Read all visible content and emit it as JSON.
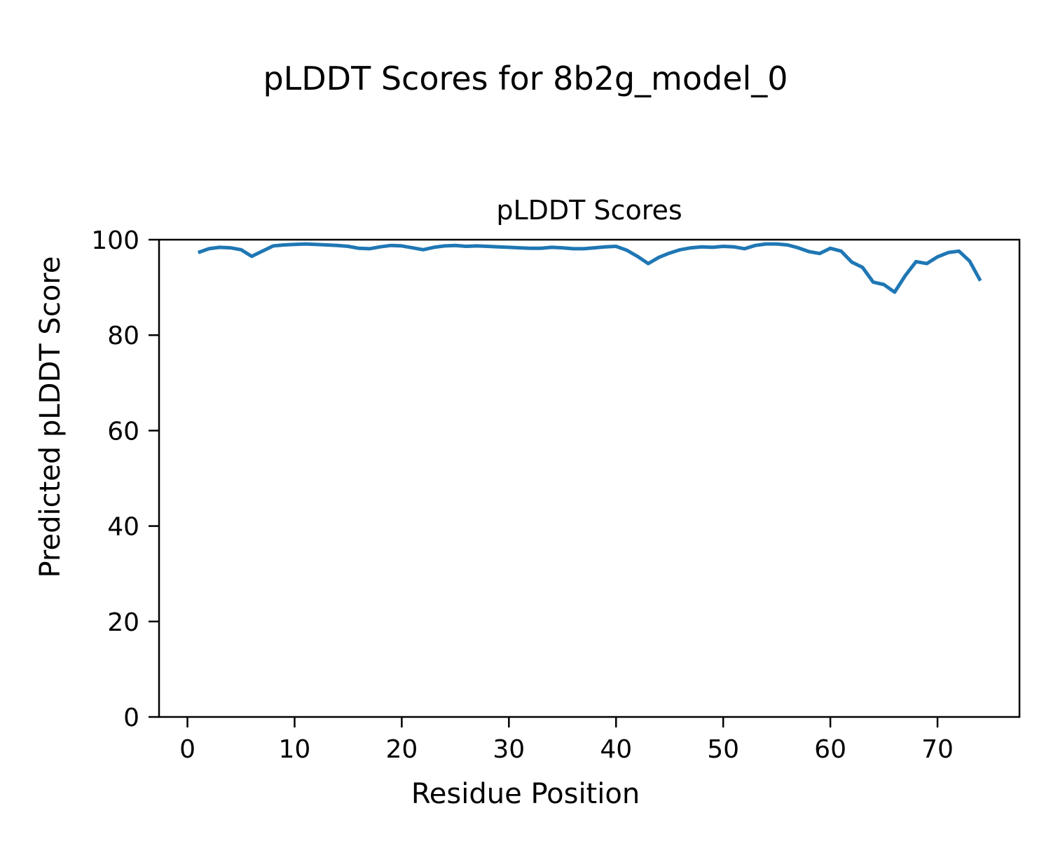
{
  "figure": {
    "suptitle": "pLDDT Scores for 8b2g_model_0"
  },
  "chart_data": {
    "type": "line",
    "title": "pLDDT Scores",
    "xlabel": "Residue Position",
    "ylabel": "Predicted pLDDT Score",
    "legend": null,
    "grid": false,
    "line_color": "#1f77b4",
    "line_width": 5,
    "xlim": [
      -2.65,
      77.65
    ],
    "ylim": [
      0,
      100
    ],
    "x_ticks": [
      0,
      10,
      20,
      30,
      40,
      50,
      60,
      70
    ],
    "y_ticks": [
      0,
      20,
      40,
      60,
      80,
      100
    ],
    "x": [
      1,
      2,
      3,
      4,
      5,
      6,
      7,
      8,
      9,
      10,
      11,
      12,
      13,
      14,
      15,
      16,
      17,
      18,
      19,
      20,
      21,
      22,
      23,
      24,
      25,
      26,
      27,
      28,
      29,
      30,
      31,
      32,
      33,
      34,
      35,
      36,
      37,
      38,
      39,
      40,
      41,
      42,
      43,
      44,
      45,
      46,
      47,
      48,
      49,
      50,
      51,
      52,
      53,
      54,
      55,
      56,
      57,
      58,
      59,
      60,
      61,
      62,
      63,
      64,
      65,
      66,
      67,
      68,
      69,
      70,
      71,
      72,
      73,
      74
    ],
    "y": [
      97.3,
      98.1,
      98.4,
      98.3,
      97.9,
      96.5,
      97.6,
      98.7,
      98.9,
      99.0,
      99.1,
      99.0,
      98.9,
      98.8,
      98.6,
      98.2,
      98.1,
      98.5,
      98.8,
      98.7,
      98.3,
      97.9,
      98.4,
      98.7,
      98.8,
      98.6,
      98.7,
      98.6,
      98.5,
      98.4,
      98.3,
      98.2,
      98.2,
      98.4,
      98.3,
      98.1,
      98.1,
      98.3,
      98.5,
      98.6,
      97.8,
      96.5,
      95.0,
      96.3,
      97.2,
      97.9,
      98.3,
      98.5,
      98.4,
      98.6,
      98.5,
      98.1,
      98.8,
      99.1,
      99.1,
      98.9,
      98.3,
      97.5,
      97.1,
      98.2,
      97.6,
      95.3,
      94.2,
      91.1,
      90.6,
      89.0,
      92.5,
      95.4,
      95.0,
      96.4,
      97.3,
      97.6,
      95.5,
      91.4
    ]
  }
}
